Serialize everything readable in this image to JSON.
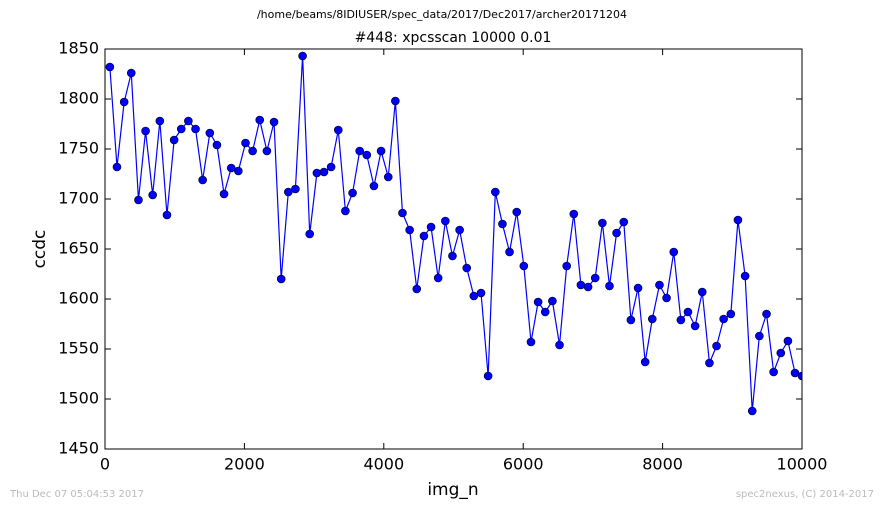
{
  "chart_data": {
    "type": "line",
    "suptitle": "/home/beams/8IDIUSER/spec_data/2017/Dec2017/archer20171204",
    "title": "#448: xpcsscan 10000 0.01",
    "x_label": "img_n",
    "y_label": "ccdc",
    "timestamp": "Thu Dec 07 05:04:53 2017",
    "credit": "spec2nexus, (C) 2014-2017",
    "x": [
      70,
      172,
      275,
      377,
      480,
      582,
      684,
      787,
      889,
      992,
      1094,
      1196,
      1299,
      1401,
      1504,
      1606,
      1708,
      1811,
      1913,
      2016,
      2118,
      2220,
      2323,
      2425,
      2528,
      2630,
      2732,
      2835,
      2937,
      3040,
      3142,
      3244,
      3347,
      3449,
      3552,
      3654,
      3756,
      3859,
      3961,
      4064,
      4166,
      4268,
      4371,
      4473,
      4576,
      4678,
      4780,
      4883,
      4985,
      5088,
      5190,
      5292,
      5395,
      5497,
      5600,
      5702,
      5804,
      5907,
      6009,
      6112,
      6214,
      6316,
      6419,
      6521,
      6624,
      6726,
      6828,
      6931,
      7033,
      7136,
      7238,
      7340,
      7443,
      7545,
      7648,
      7750,
      7852,
      7955,
      8057,
      8160,
      8262,
      8364,
      8467,
      8569,
      8672,
      8774,
      8876,
      8979,
      9081,
      9184,
      9286,
      9388,
      9491,
      9593,
      9696,
      9798,
      9900,
      10000
    ],
    "series": [
      {
        "color": "#0000ff",
        "values": [
          1832,
          1732,
          1797,
          1826,
          1699,
          1768,
          1704,
          1778,
          1684,
          1759,
          1770,
          1778,
          1770,
          1719,
          1766,
          1754,
          1705,
          1731,
          1728,
          1756,
          1748,
          1779,
          1748,
          1777,
          1620,
          1707,
          1710,
          1843,
          1665,
          1726,
          1727,
          1732,
          1769,
          1688,
          1706,
          1748,
          1744,
          1713,
          1748,
          1722,
          1798,
          1686,
          1669,
          1610,
          1663,
          1672,
          1621,
          1678,
          1643,
          1669,
          1631,
          1603,
          1606,
          1523,
          1707,
          1675,
          1647,
          1687,
          1633,
          1557,
          1597,
          1587,
          1598,
          1554,
          1633,
          1685,
          1614,
          1612,
          1621,
          1676,
          1613,
          1666,
          1677,
          1579,
          1611,
          1537,
          1580,
          1614,
          1601,
          1647,
          1579,
          1587,
          1573,
          1607,
          1536,
          1553,
          1580,
          1585,
          1679,
          1623,
          1488,
          1563,
          1585,
          1527,
          1546,
          1558,
          1526,
          1523
        ]
      }
    ],
    "xlim": [
      0,
      10000
    ],
    "xticks": [
      0,
      2000,
      4000,
      6000,
      8000,
      10000
    ],
    "ylim": [
      1450,
      1850
    ],
    "yticks": [
      1450,
      1500,
      1550,
      1600,
      1650,
      1700,
      1750,
      1800,
      1850
    ],
    "grid": false
  }
}
